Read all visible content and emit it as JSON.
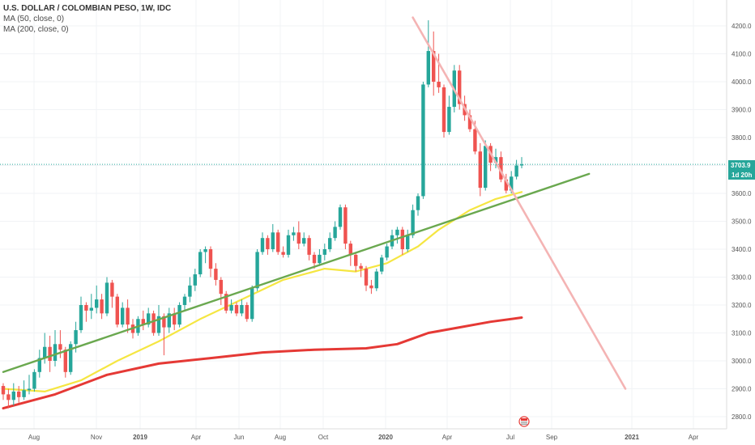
{
  "legend": {
    "title": "U.S. DOLLAR / COLOMBIAN PESO, 1W, IDC",
    "ma1": "MA (50, close, 0)",
    "ma2": "MA (200, close, 0)"
  },
  "colors": {
    "up": "#26a69a",
    "down": "#ef5350",
    "ma50": "#f5e642",
    "ma200": "#e53935",
    "support_line": "#6aa84f",
    "resistance_line": "#f4b4b4",
    "price_line": "#26a69a",
    "tag_bg": "#26a69a"
  },
  "chart_data": {
    "type": "candlestick",
    "x_ticks": [
      "Aug",
      "Nov",
      "2019",
      "Apr",
      "Jun",
      "Aug",
      "Oct",
      "2020",
      "Apr",
      "Jul",
      "Sep",
      "2021",
      "Apr"
    ],
    "y_ticks": [
      "4200.0",
      "4100.0",
      "4000.0",
      "3900.0",
      "3800.0",
      "3700.0",
      "3600.0",
      "3500.0",
      "3400.0",
      "3300.0",
      "3200.0",
      "3100.0",
      "3000.0",
      "2900.0",
      "2800.0"
    ],
    "ylim": [
      2770,
      4240
    ],
    "last_price": "3703.9",
    "countdown": "1d 20h",
    "candles": [
      [
        2910,
        2880,
        2920,
        2860
      ],
      [
        2880,
        2860,
        2900,
        2830
      ],
      [
        2860,
        2890,
        2920,
        2840
      ],
      [
        2890,
        2870,
        2910,
        2850
      ],
      [
        2870,
        2895,
        2930,
        2860
      ],
      [
        2895,
        2900,
        2950,
        2880
      ],
      [
        2900,
        2960,
        2970,
        2890
      ],
      [
        2960,
        3010,
        3040,
        2940
      ],
      [
        3010,
        3050,
        3100,
        2990
      ],
      [
        3050,
        3000,
        3090,
        2960
      ],
      [
        3000,
        3060,
        3110,
        2980
      ],
      [
        3060,
        3040,
        3110,
        3010
      ],
      [
        3040,
        2960,
        3050,
        2940
      ],
      [
        2960,
        3060,
        3070,
        2950
      ],
      [
        3060,
        3110,
        3140,
        3030
      ],
      [
        3110,
        3200,
        3230,
        3100
      ],
      [
        3200,
        3180,
        3210,
        3140
      ],
      [
        3180,
        3190,
        3240,
        3150
      ],
      [
        3190,
        3220,
        3270,
        3170
      ],
      [
        3220,
        3170,
        3240,
        3150
      ],
      [
        3170,
        3280,
        3300,
        3160
      ],
      [
        3280,
        3230,
        3290,
        3190
      ],
      [
        3230,
        3130,
        3240,
        3120
      ],
      [
        3130,
        3190,
        3210,
        3120
      ],
      [
        3190,
        3130,
        3220,
        3100
      ],
      [
        3130,
        3100,
        3150,
        3080
      ],
      [
        3100,
        3150,
        3160,
        3090
      ],
      [
        3150,
        3130,
        3180,
        3110
      ],
      [
        3130,
        3170,
        3190,
        3120
      ],
      [
        3170,
        3100,
        3180,
        3090
      ],
      [
        3100,
        3160,
        3200,
        3090
      ],
      [
        3160,
        3120,
        3170,
        3020
      ],
      [
        3120,
        3170,
        3190,
        3100
      ],
      [
        3170,
        3130,
        3190,
        3110
      ],
      [
        3130,
        3200,
        3210,
        3120
      ],
      [
        3200,
        3230,
        3240,
        3180
      ],
      [
        3230,
        3270,
        3300,
        3210
      ],
      [
        3270,
        3310,
        3330,
        3250
      ],
      [
        3310,
        3390,
        3400,
        3300
      ],
      [
        3390,
        3400,
        3410,
        3350
      ],
      [
        3400,
        3330,
        3410,
        3300
      ],
      [
        3330,
        3290,
        3350,
        3270
      ],
      [
        3290,
        3240,
        3300,
        3200
      ],
      [
        3240,
        3180,
        3250,
        3170
      ],
      [
        3180,
        3200,
        3220,
        3170
      ],
      [
        3200,
        3170,
        3210,
        3160
      ],
      [
        3170,
        3200,
        3220,
        3160
      ],
      [
        3200,
        3150,
        3210,
        3140
      ],
      [
        3150,
        3260,
        3270,
        3140
      ],
      [
        3260,
        3390,
        3400,
        3250
      ],
      [
        3390,
        3440,
        3460,
        3380
      ],
      [
        3440,
        3400,
        3450,
        3380
      ],
      [
        3400,
        3460,
        3490,
        3390
      ],
      [
        3460,
        3390,
        3470,
        3380
      ],
      [
        3390,
        3380,
        3410,
        3370
      ],
      [
        3380,
        3450,
        3470,
        3370
      ],
      [
        3450,
        3460,
        3480,
        3430
      ],
      [
        3460,
        3420,
        3500,
        3400
      ],
      [
        3420,
        3440,
        3460,
        3410
      ],
      [
        3440,
        3380,
        3450,
        3360
      ],
      [
        3380,
        3350,
        3390,
        3330
      ],
      [
        3350,
        3380,
        3400,
        3340
      ],
      [
        3380,
        3400,
        3420,
        3360
      ],
      [
        3400,
        3440,
        3460,
        3390
      ],
      [
        3440,
        3480,
        3500,
        3430
      ],
      [
        3480,
        3550,
        3560,
        3470
      ],
      [
        3550,
        3420,
        3560,
        3400
      ],
      [
        3420,
        3380,
        3430,
        3340
      ],
      [
        3380,
        3340,
        3390,
        3320
      ],
      [
        3340,
        3330,
        3350,
        3300
      ],
      [
        3330,
        3270,
        3340,
        3250
      ],
      [
        3270,
        3260,
        3290,
        3240
      ],
      [
        3260,
        3320,
        3330,
        3250
      ],
      [
        3320,
        3370,
        3380,
        3310
      ],
      [
        3370,
        3410,
        3420,
        3360
      ],
      [
        3410,
        3450,
        3470,
        3400
      ],
      [
        3450,
        3470,
        3480,
        3420
      ],
      [
        3470,
        3400,
        3480,
        3380
      ],
      [
        3400,
        3450,
        3470,
        3390
      ],
      [
        3450,
        3540,
        3560,
        3440
      ],
      [
        3540,
        3590,
        3600,
        3520
      ],
      [
        3590,
        3990,
        4000,
        3580
      ],
      [
        3990,
        4110,
        4220,
        3980
      ],
      [
        4110,
        4000,
        4180,
        3950
      ],
      [
        4000,
        3980,
        4100,
        3960
      ],
      [
        3980,
        3820,
        3990,
        3800
      ],
      [
        3820,
        3910,
        3950,
        3810
      ],
      [
        3910,
        4040,
        4060,
        3890
      ],
      [
        4040,
        3920,
        4060,
        3900
      ],
      [
        3920,
        3880,
        3950,
        3860
      ],
      [
        3880,
        3830,
        3900,
        3820
      ],
      [
        3830,
        3750,
        3860,
        3740
      ],
      [
        3750,
        3620,
        3780,
        3590
      ],
      [
        3620,
        3770,
        3790,
        3610
      ],
      [
        3770,
        3710,
        3780,
        3680
      ],
      [
        3710,
        3730,
        3760,
        3690
      ],
      [
        3730,
        3650,
        3750,
        3640
      ],
      [
        3650,
        3610,
        3670,
        3600
      ],
      [
        3610,
        3660,
        3680,
        3600
      ],
      [
        3660,
        3700,
        3720,
        3650
      ],
      [
        3700,
        3704,
        3730,
        3690
      ]
    ],
    "series": [
      {
        "name": "MA (50, close, 0)",
        "values": [
          [
            0,
            2900
          ],
          [
            8,
            2890
          ],
          [
            15,
            2930
          ],
          [
            22,
            3000
          ],
          [
            30,
            3070
          ],
          [
            38,
            3150
          ],
          [
            46,
            3220
          ],
          [
            54,
            3290
          ],
          [
            62,
            3330
          ],
          [
            68,
            3320
          ],
          [
            74,
            3350
          ],
          [
            80,
            3410
          ],
          [
            84,
            3470
          ],
          [
            90,
            3540
          ],
          [
            95,
            3580
          ],
          [
            100,
            3605
          ]
        ]
      },
      {
        "name": "MA (200, close, 0)",
        "values": [
          [
            0,
            2830
          ],
          [
            10,
            2880
          ],
          [
            20,
            2950
          ],
          [
            30,
            2990
          ],
          [
            40,
            3010
          ],
          [
            50,
            3030
          ],
          [
            60,
            3040
          ],
          [
            70,
            3045
          ],
          [
            76,
            3060
          ],
          [
            82,
            3100
          ],
          [
            88,
            3120
          ],
          [
            94,
            3140
          ],
          [
            100,
            3155
          ]
        ]
      }
    ],
    "trendlines": [
      {
        "name": "support",
        "from": [
          0,
          2960
        ],
        "to": [
          113,
          3670
        ]
      },
      {
        "name": "resistance",
        "from": [
          79,
          4230
        ],
        "to": [
          120,
          2900
        ]
      }
    ]
  }
}
